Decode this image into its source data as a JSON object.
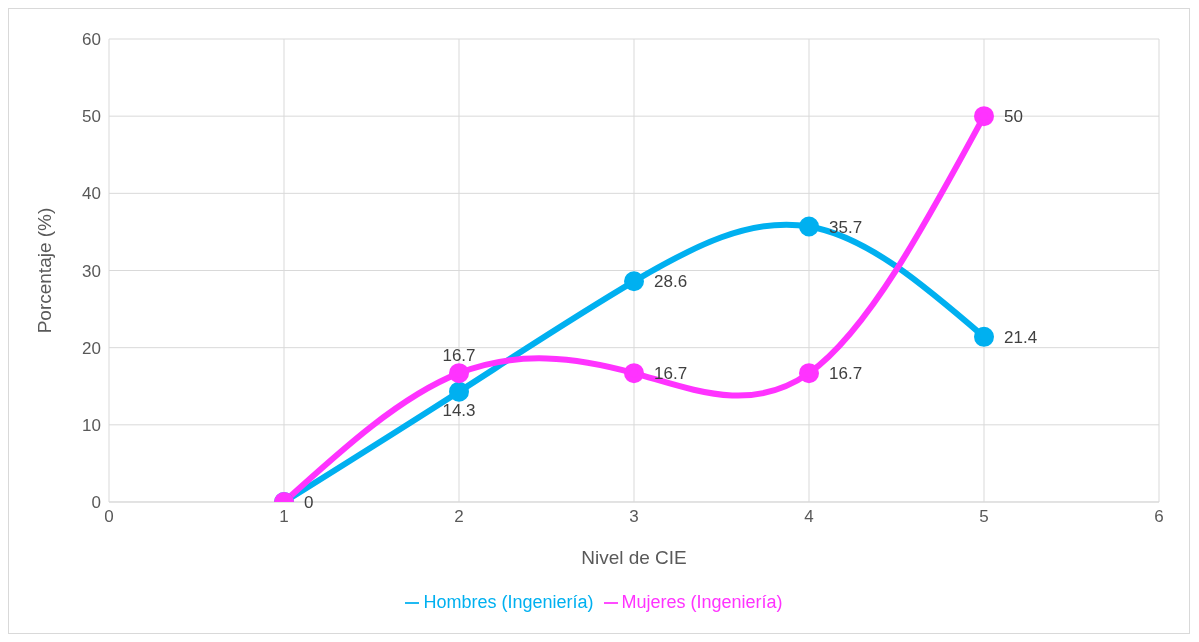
{
  "chart_data": {
    "type": "line",
    "xlabel": "Nivel de CIE",
    "ylabel": "Porcentaje (%)",
    "x": [
      1,
      2,
      3,
      4,
      5
    ],
    "series": [
      {
        "name": "Hombres (Ingeniería)",
        "color": "#00b0f0",
        "values": [
          0,
          14.3,
          28.6,
          35.7,
          21.4
        ],
        "value_labels": [
          "0",
          "14.3",
          "28.6",
          "35.7",
          "21.4"
        ]
      },
      {
        "name": "Mujeres (Ingeniería)",
        "color": "#ff33ff",
        "values": [
          0,
          16.7,
          16.7,
          16.7,
          50
        ],
        "value_labels": [
          null,
          "16.7",
          "16.7",
          "16.7",
          "50"
        ]
      }
    ],
    "xlim": [
      0,
      6
    ],
    "xticks": [
      0,
      1,
      2,
      3,
      4,
      5,
      6
    ],
    "ylim": [
      0,
      60
    ],
    "yticks": [
      0,
      10,
      20,
      30,
      40,
      50,
      60
    ],
    "grid": true,
    "legend": "bottom",
    "marker": "circle",
    "line_style": "solid"
  }
}
